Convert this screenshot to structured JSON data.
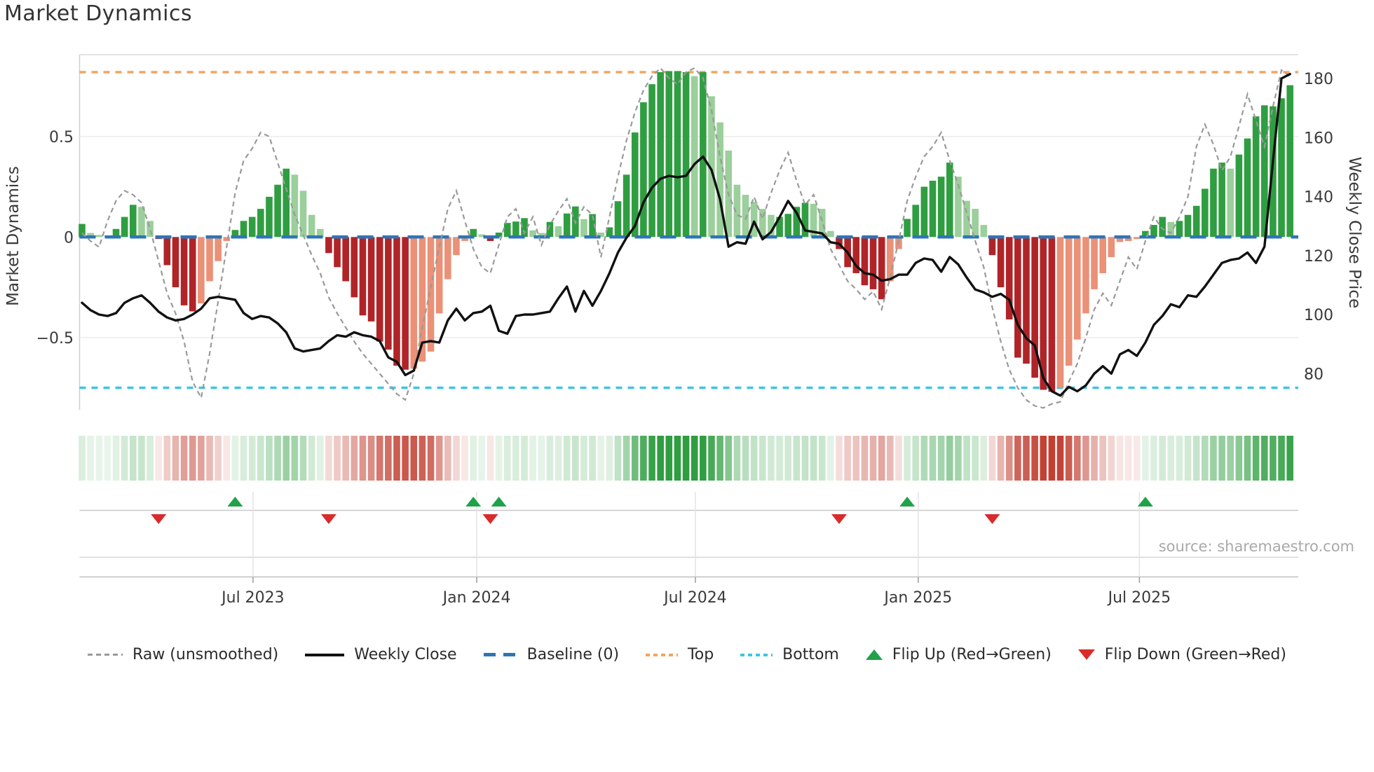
{
  "title": "Market Dynamics",
  "source": "source: sharemaestro.com",
  "axes": {
    "left": {
      "label": "Market Dynamics",
      "ticks": [
        {
          "label": "0.5",
          "value": 0.5
        },
        {
          "label": "0",
          "value": 0
        },
        {
          "label": "−0.5",
          "value": -0.5
        }
      ]
    },
    "right": {
      "label": "Weekly Close Price",
      "ticks": [
        {
          "label": "180",
          "value": 180
        },
        {
          "label": "160",
          "value": 160
        },
        {
          "label": "140",
          "value": 140
        },
        {
          "label": "120",
          "value": 120
        },
        {
          "label": "100",
          "value": 100
        },
        {
          "label": "80",
          "value": 80
        }
      ]
    },
    "x": {
      "ticks": [
        {
          "label": "Jul 2023",
          "week": 20.1
        },
        {
          "label": "Jan 2024",
          "week": 46.4
        },
        {
          "label": "Jul 2024",
          "week": 72.1
        },
        {
          "label": "Jan 2025",
          "week": 98.3
        },
        {
          "label": "Jul 2025",
          "week": 124.3
        }
      ]
    }
  },
  "legend": {
    "items": [
      {
        "label": "Raw (unsmoothed)",
        "marker": "gray-dashed-line"
      },
      {
        "label": "Weekly Close",
        "marker": "black-solid-line"
      },
      {
        "label": "Baseline (0)",
        "marker": "blue-dashed-line"
      },
      {
        "label": "Top",
        "marker": "orange-dotted-line"
      },
      {
        "label": "Bottom",
        "marker": "cyan-dotted-line"
      },
      {
        "label": "Flip Up (Red→Green)",
        "marker": "green-up-triangle"
      },
      {
        "label": "Flip Down (Green→Red)",
        "marker": "red-down-triangle"
      }
    ]
  },
  "colors": {
    "bar_green_dark": "#2f9e41",
    "bar_green_light": "#9bcf9b",
    "bar_red_dark": "#b02428",
    "bar_red_light": "#ea9178",
    "heat_green": "#2f9e41",
    "heat_red": "#c0392b",
    "top_line": "#f3a55f",
    "bottom_line": "#3ec6e0",
    "baseline": "#2e75b6",
    "raw_line": "#9a9a9a",
    "close_line": "#111111",
    "flip_up": "#1fa24a",
    "flip_down": "#d92b2b",
    "grid": "#ececec",
    "panel_line": "#c8c8c8",
    "axis_line": "#bfbfbf",
    "tick_text": "#3a3a3a"
  },
  "chart_data": {
    "type": "bar",
    "description": "Weekly market-dynamics oscillator bars with smoothed close price line (right axis), raw unsmoothed oscillator (dashed), baseline/top/bottom reference lines, sign heatmap strip and color-flip markers",
    "weeks": 143,
    "x_range_weeks": [
      0,
      142
    ],
    "ylim_left": [
      -0.88,
      0.91
    ],
    "ylim_right": [
      68,
      188
    ],
    "baseline": 0,
    "top": 0.82,
    "bottom": -0.75,
    "bars": {
      "values": [
        0.065,
        0.02,
        0.01,
        0.005,
        0.04,
        0.1,
        0.16,
        0.15,
        0.08,
        -0.01,
        -0.14,
        -0.25,
        -0.34,
        -0.37,
        -0.33,
        -0.22,
        -0.12,
        -0.02,
        0.035,
        0.08,
        0.1,
        0.14,
        0.2,
        0.26,
        0.34,
        0.31,
        0.23,
        0.11,
        0.04,
        -0.08,
        -0.15,
        -0.22,
        -0.3,
        -0.39,
        -0.42,
        -0.52,
        -0.56,
        -0.64,
        -0.66,
        -0.655,
        -0.62,
        -0.57,
        -0.38,
        -0.21,
        -0.09,
        -0.02,
        0.04,
        0.013,
        -0.02,
        0.022,
        0.07,
        0.077,
        0.094,
        0.033,
        0.02,
        0.075,
        0.054,
        0.117,
        0.152,
        0.089,
        0.114,
        0.022,
        0.048,
        0.178,
        0.31,
        0.52,
        0.67,
        0.76,
        0.82,
        0.825,
        0.825,
        0.82,
        0.8,
        0.82,
        0.7,
        0.57,
        0.43,
        0.26,
        0.21,
        0.175,
        0.14,
        0.11,
        0.1,
        0.115,
        0.15,
        0.17,
        0.165,
        0.14,
        0.03,
        -0.06,
        -0.15,
        -0.18,
        -0.24,
        -0.26,
        -0.31,
        -0.22,
        -0.06,
        0.09,
        0.16,
        0.25,
        0.28,
        0.3,
        0.37,
        0.3,
        0.18,
        0.14,
        0.06,
        -0.09,
        -0.25,
        -0.41,
        -0.6,
        -0.63,
        -0.7,
        -0.76,
        -0.77,
        -0.75,
        -0.64,
        -0.51,
        -0.38,
        -0.26,
        -0.18,
        -0.1,
        -0.025,
        -0.02,
        -0.01,
        0.03,
        0.06,
        0.1,
        0.075,
        0.08,
        0.11,
        0.155,
        0.24,
        0.34,
        0.37,
        0.34,
        0.41,
        0.49,
        0.6,
        0.655,
        0.65,
        0.69,
        0.755
      ],
      "shade": [
        "g",
        "lg",
        "lg",
        "lg",
        "g",
        "g",
        "g",
        "lg",
        "lg",
        "r",
        "r",
        "r",
        "r",
        "r",
        "lr",
        "lr",
        "lr",
        "lr",
        "g",
        "g",
        "g",
        "g",
        "g",
        "g",
        "g",
        "lg",
        "lg",
        "lg",
        "lg",
        "r",
        "r",
        "r",
        "r",
        "r",
        "r",
        "r",
        "r",
        "r",
        "r",
        "lr",
        "lr",
        "lr",
        "lr",
        "lr",
        "lr",
        "lr",
        "g",
        "lg",
        "r",
        "g",
        "g",
        "g",
        "g",
        "lg",
        "lg",
        "g",
        "lg",
        "g",
        "g",
        "lg",
        "g",
        "lg",
        "g",
        "g",
        "g",
        "g",
        "g",
        "g",
        "g",
        "g",
        "g",
        "g",
        "lg",
        "g",
        "lg",
        "lg",
        "lg",
        "lg",
        "lg",
        "lg",
        "lg",
        "lg",
        "g",
        "g",
        "g",
        "g",
        "lg",
        "lg",
        "lg",
        "r",
        "r",
        "r",
        "r",
        "r",
        "r",
        "lr",
        "lr",
        "g",
        "g",
        "g",
        "g",
        "g",
        "g",
        "lg",
        "lg",
        "lg",
        "lg",
        "r",
        "r",
        "r",
        "r",
        "r",
        "r",
        "r",
        "r",
        "lr",
        "lr",
        "lr",
        "lr",
        "lr",
        "lr",
        "lr",
        "lr",
        "lr",
        "lr",
        "g",
        "g",
        "g",
        "lg",
        "g",
        "g",
        "g",
        "g",
        "g",
        "g",
        "lg",
        "g",
        "g",
        "g",
        "g",
        "g",
        "g",
        "g"
      ]
    },
    "series": [
      {
        "name": "Weekly Close",
        "axis": "right",
        "values": [
          104,
          101.5,
          100,
          99.5,
          100.5,
          104,
          105.5,
          106.5,
          104,
          101,
          99,
          98,
          98.5,
          100,
          102,
          105.5,
          106,
          105.5,
          105,
          100.5,
          98.5,
          99.5,
          99,
          97,
          94,
          88.5,
          87.5,
          88,
          88.5,
          91,
          93,
          92.5,
          94,
          93,
          92.5,
          91,
          85.5,
          84,
          79.5,
          81,
          90.5,
          91,
          90.5,
          98,
          102,
          98,
          100.5,
          101,
          103,
          94.5,
          93.5,
          99.5,
          100,
          100,
          100.5,
          101,
          105.5,
          109.5,
          101,
          108,
          103,
          108,
          114,
          121,
          126,
          130,
          138,
          143,
          146,
          147,
          146.5,
          147,
          151,
          153.5,
          149,
          139,
          123,
          124.5,
          124,
          131.5,
          125.5,
          128,
          133,
          138.5,
          134.5,
          128.5,
          128,
          127.5,
          124.5,
          124,
          121,
          116.5,
          114,
          113.5,
          111.5,
          112,
          113.5,
          113.5,
          117.5,
          119,
          118.5,
          114.5,
          119.5,
          117,
          112.5,
          108.5,
          107.5,
          106,
          107,
          105,
          96.5,
          92,
          89.5,
          78.5,
          74,
          72.5,
          75.5,
          74,
          76,
          80,
          82.5,
          80,
          86.5,
          88,
          86,
          90.5,
          96.5,
          99.5,
          103.5,
          102.5,
          106.5,
          106,
          109.5,
          113.5,
          117.5,
          118.5,
          119,
          121,
          117.5,
          123,
          152,
          180,
          181.5
        ]
      },
      {
        "name": "Raw (unsmoothed)",
        "axis": "left",
        "values": [
          0.02,
          -0.02,
          -0.05,
          0.08,
          0.18,
          0.23,
          0.21,
          0.17,
          0.04,
          -0.12,
          -0.28,
          -0.38,
          -0.52,
          -0.72,
          -0.8,
          -0.58,
          -0.32,
          -0.05,
          0.22,
          0.38,
          0.44,
          0.52,
          0.5,
          0.37,
          0.24,
          0.11,
          0.01,
          -0.09,
          -0.18,
          -0.3,
          -0.38,
          -0.45,
          -0.52,
          -0.58,
          -0.63,
          -0.68,
          -0.73,
          -0.78,
          -0.81,
          -0.68,
          -0.45,
          -0.25,
          -0.05,
          0.14,
          0.23,
          0.08,
          -0.06,
          -0.15,
          -0.18,
          -0.04,
          0.1,
          0.14,
          0.02,
          0.1,
          -0.04,
          0.06,
          0.13,
          0.19,
          0.07,
          0.15,
          0.11,
          -0.1,
          0.1,
          0.3,
          0.48,
          0.62,
          0.73,
          0.8,
          0.84,
          0.79,
          0.76,
          0.82,
          0.84,
          0.79,
          0.63,
          0.4,
          0.21,
          0.11,
          0.09,
          0.2,
          0.09,
          0.22,
          0.33,
          0.42,
          0.28,
          0.16,
          0.21,
          0.08,
          -0.06,
          -0.14,
          -0.22,
          -0.26,
          -0.31,
          -0.27,
          -0.36,
          -0.2,
          -0.02,
          0.18,
          0.3,
          0.4,
          0.45,
          0.52,
          0.38,
          0.26,
          0.12,
          -0.02,
          -0.15,
          -0.35,
          -0.52,
          -0.66,
          -0.75,
          -0.81,
          -0.84,
          -0.85,
          -0.83,
          -0.82,
          -0.72,
          -0.63,
          -0.5,
          -0.36,
          -0.28,
          -0.34,
          -0.22,
          -0.1,
          -0.16,
          -0.02,
          0.1,
          0.04,
          0.02,
          0.1,
          0.2,
          0.45,
          0.56,
          0.46,
          0.33,
          0.4,
          0.55,
          0.71,
          0.58,
          0.45,
          0.65,
          0.83,
          0.8
        ]
      }
    ],
    "flip_up_weeks": [
      18,
      46,
      49,
      97,
      125
    ],
    "flip_down_weeks": [
      9,
      29,
      48,
      89,
      107
    ],
    "heatmap": {
      "derived_from": "bars",
      "note": "one cell per week; green when bar>=0, red when bar<0; opacity scales with |value|"
    }
  }
}
